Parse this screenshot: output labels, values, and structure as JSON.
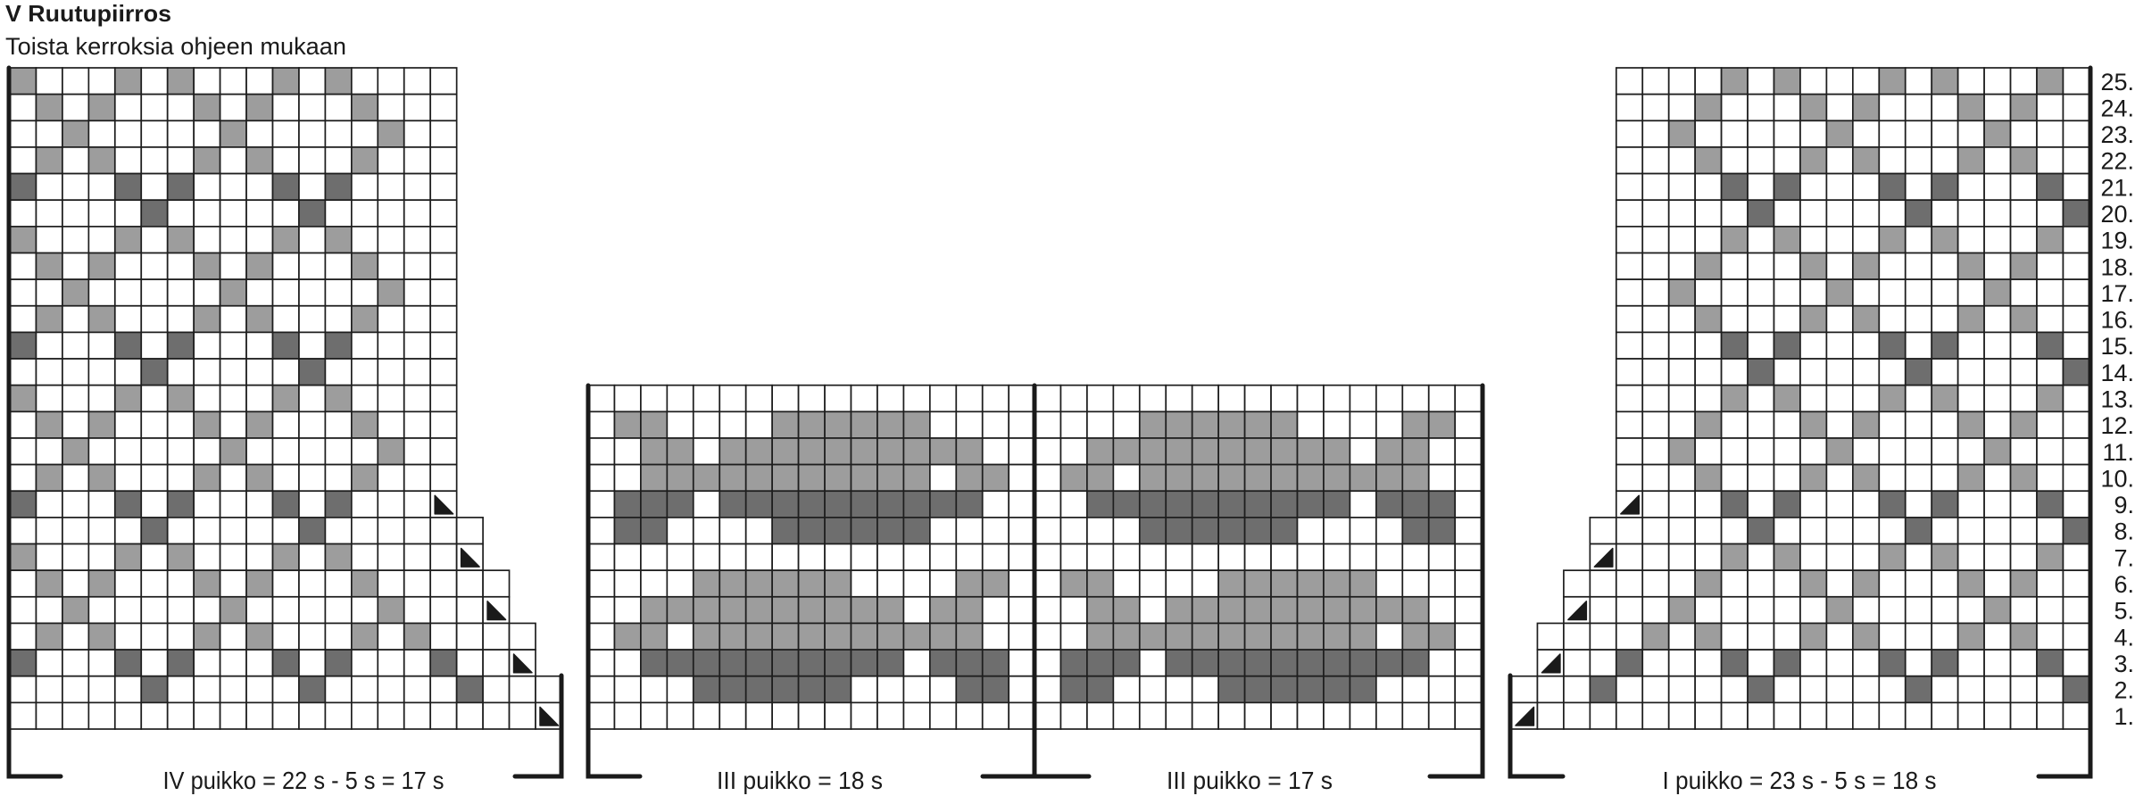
{
  "title": "V Ruutupiirros",
  "subtitle": "Toista kerroksia ohjeen mukaan",
  "colors": {
    "white": "#ffffff",
    "light": "#9d9d9d",
    "dark": "#6e6e6e",
    "grid": "#1e1e1e",
    "triangle": "#1a1a1a"
  },
  "cell_key": {
    ".": "white",
    "L": "light gray",
    "D": "dark gray",
    "T": "decrease triangle",
    " ": "no stitch"
  },
  "row_numbers": [
    "25.",
    "24.",
    "23.",
    "22.",
    "21.",
    "20.",
    "19.",
    "18.",
    "17.",
    "16.",
    "15.",
    "14.",
    "13.",
    "12.",
    "11.",
    "10.",
    "9.",
    "8.",
    "7.",
    "6.",
    "5.",
    "4.",
    "3.",
    "2.",
    "1."
  ],
  "charts": [
    {
      "label": "IV puikko = 22 s - 5 s = 17 s",
      "top_row": 25,
      "triangle": "lower-left",
      "rows": [
        "L...L.L...L.L....",
        ".L.L...L.L...L...",
        "..L.....L.....L..",
        ".L.L...L.L...L...",
        "D...D.D...D.D....",
        ".....D.....D.....",
        "L...L.L...L.L....",
        ".L.L...L.L...L...",
        "..L.....L.....L..",
        ".L.L...L.L...L...",
        "D...D.D...D.D....",
        ".....D.....D.....",
        "L...L.L...L.L....",
        ".L.L...L.L...L...",
        "..L.....L.....L..",
        ".L.L...L.L...L...",
        "D...D.D...D.D...T",
        ".....D.....D......",
        "L...L.L...L.L....T",
        ".L.L...L.L...L.....",
        "..L.....L.....L...T",
        ".L.L...L.L...L.L....",
        "D...D.D...D.D...D..T",
        ".....D.....D.....D...",
        "....................T"
      ]
    },
    {
      "label": "III puikko = 18 s",
      "top_row": 13,
      "triangle": "lower-left",
      "rows": [
        ".................",
        ".LL....LLLLLL....",
        "..LL.LLLLLLLLLL..",
        "..LLLLLLLLLLL.LL.",
        ".DDD.DDDDDDDDDD..",
        ".DD....DDDDDD....",
        ".................",
        "....LLLLLL....LL.",
        "..LLLLLLLLLL.LL..",
        ".LL.LLLLLLLLLLL..",
        "..DDDDDDDDDD.DDD.",
        "....DDDDDD....DD.",
        "................."
      ]
    },
    {
      "label": "III puikko = 17 s",
      "top_row": 13,
      "triangle": "lower-left",
      "rows": [
        ".................",
        "....LLLLLL....LL.",
        "..LLLLLLLLLL.LL..",
        ".LL.LLLLLLLLLLL..",
        "..DDDDDDDDDD.DDD.",
        "....DDDDDD....DD.",
        ".................",
        ".LL....LLLLLL....",
        "..LL.LLLLLLLLLL..",
        "..LLLLLLLLLLL.LL.",
        ".DDD.DDDDDDDDDD..",
        ".DD....DDDDDD....",
        "................."
      ]
    },
    {
      "label": "I puikko = 23 s - 5 s = 18 s",
      "top_row": 25,
      "triangle": "lower-right",
      "rows": [
        "    ....L.L...L.L...L.",
        "    ...L...L.L...L.L..",
        "    ..L.....L.....L...",
        "    ...L...L.L...L.L..",
        "    ....D.D...D.D...D.",
        "    .....D.....D.....D",
        "    ....L.L...L.L...L.",
        "    ...L...L.L...L.L..",
        "    ..L.....L.....L...",
        "    ...L...L.L...L.L..",
        "    ....D.D...D.D...D.",
        "    .....D.....D.....D",
        "    ....L.L...L.L...L.",
        "    ...L...L.L...L.L..",
        "    ..L.....L.....L...",
        "    ...L...L.L...L.L..",
        "    T...D.D...D.D...D.",
        "   ......D.....D.....D",
        "   T....L.L...L.L...L.",
        "  .....L...L.L...L.L..",
        "  T...L.....L.....L...",
        " ....L.L...L.L...L.L..",
        " T..D...D.D...D.D...D.",
        "...D.....D.....D.....D",
        "T....................."
      ]
    }
  ]
}
